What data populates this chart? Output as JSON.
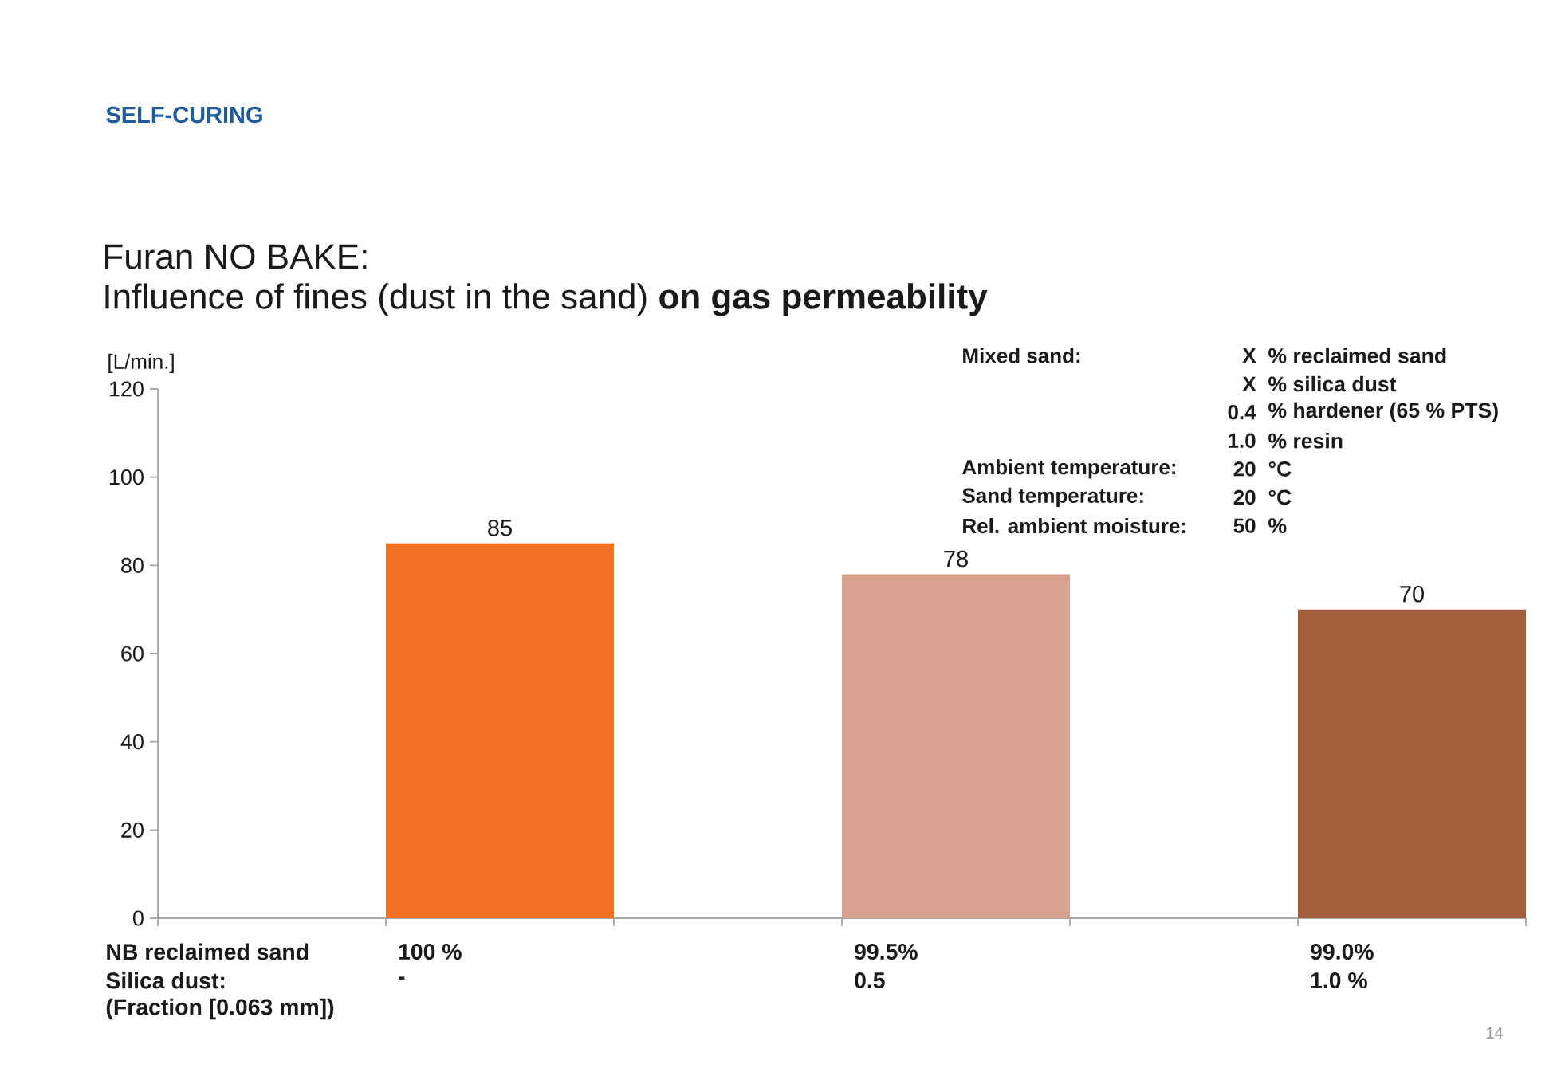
{
  "chart_data": {
    "type": "bar",
    "title": "Furan NO BAKE:",
    "subtitle": "Influence of fines (dust in the sand) **on gas permeability**",
    "xlabel": "NB reclaimed sand",
    "ylabel": "[L/min.]",
    "categories": [
      "100 %",
      "99.5%",
      "99.0%"
    ],
    "values": [
      85,
      78,
      70
    ],
    "colors": [
      "#ef7121",
      "#d9a28e",
      "#a2603f"
    ],
    "ylim": [
      0,
      120
    ],
    "yticks": [
      0,
      20,
      40,
      60,
      80,
      100,
      120
    ],
    "data_labels": true,
    "annotations": [
      "SELF-CURING",
      "Mixed sand:",
      "X",
      "% reclaimed sand",
      "X",
      "% silica dust",
      "0.4",
      "% hardener (65 % PTS)",
      "1.0",
      "% resin",
      "Ambient temperature:",
      "20",
      "°C",
      "Sand temperature:",
      "20",
      "°C",
      "Rel. ambient moisture:",
      "50",
      "%",
      "Silica dust:",
      "-",
      "0.5",
      "1.0 %",
      "(Fraction [0.063 mm])",
      "14"
    ]
  }
}
